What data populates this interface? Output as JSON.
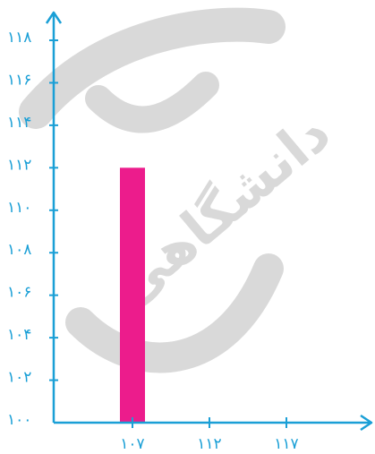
{
  "chart_data": {
    "type": "bar",
    "categories": [
      "۱۰۷"
    ],
    "x_ticks": [
      "۱۰۷",
      "۱۱۲",
      "۱۱۷"
    ],
    "y_ticks": [
      "۱۰۰",
      "۱۰۲",
      "۱۰۴",
      "۱۰۶",
      "۱۰۸",
      "۱۱۰",
      "۱۱۲",
      "۱۱۴",
      "۱۱۶",
      "۱۱۸"
    ],
    "y_tick_values": [
      100,
      102,
      104,
      106,
      108,
      110,
      112,
      114,
      116,
      118
    ],
    "values": [
      112
    ],
    "ylim": [
      100,
      118
    ],
    "grid": false,
    "title": "",
    "xlabel": "",
    "ylabel": ""
  },
  "colors": {
    "axis": "#1a9fd6",
    "bar": "#ec1c8c",
    "watermark": "#d9d9d9"
  },
  "watermark_text": "دانشگاهی"
}
